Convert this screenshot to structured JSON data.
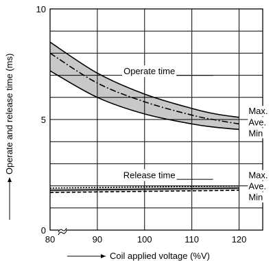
{
  "chart_data": {
    "type": "line",
    "xlabel": "Coil applied voltage (%V)",
    "ylabel": "Operate and release time (ms)",
    "xlim": [
      80,
      125
    ],
    "ylim": [
      0,
      10
    ],
    "x_ticks": [
      {
        "value": 80,
        "label": "80"
      },
      {
        "value": 90,
        "label": "90"
      },
      {
        "value": 100,
        "label": "100"
      },
      {
        "value": 110,
        "label": "110"
      },
      {
        "value": 120,
        "label": "120"
      }
    ],
    "y_ticks": [
      {
        "value": 0,
        "label": "0"
      },
      {
        "value": 5,
        "label": "5"
      },
      {
        "value": 10,
        "label": "10"
      }
    ],
    "grid": true,
    "axis_break": "≈",
    "groups": [
      {
        "label": "Operate time",
        "label_at": {
          "x": 101,
          "y": 7.15
        },
        "shaded_band": true,
        "series": [
          {
            "name": "Max.",
            "style": "solid",
            "x": [
              80,
              90,
              100,
              110,
              115,
              120
            ],
            "y": [
              8.5,
              7.1,
              6.15,
              5.5,
              5.25,
              5.1
            ]
          },
          {
            "name": "Ave.",
            "style": "dashdot",
            "x": [
              80,
              90,
              100,
              110,
              115,
              120
            ],
            "y": [
              8.0,
              6.65,
              5.8,
              5.2,
              4.98,
              4.8
            ]
          },
          {
            "name": "Min",
            "style": "solid",
            "x": [
              80,
              90,
              100,
              110,
              115,
              120
            ],
            "y": [
              7.2,
              6.0,
              5.25,
              4.8,
              4.65,
              4.55
            ]
          }
        ]
      },
      {
        "label": "Release time",
        "label_at": {
          "x": 101,
          "y": 2.45
        },
        "shaded_band": true,
        "series": [
          {
            "name": "Max.",
            "style": "dotted",
            "x": [
              80,
              100,
              120
            ],
            "y": [
              1.9,
              1.95,
              2.0
            ]
          },
          {
            "name": "Ave.",
            "style": "solid",
            "x": [
              80,
              100,
              120
            ],
            "y": [
              1.8,
              1.85,
              1.9
            ]
          },
          {
            "name": "Min",
            "style": "dashed",
            "x": [
              80,
              100,
              120
            ],
            "y": [
              1.7,
              1.75,
              1.8
            ]
          }
        ]
      }
    ],
    "legend_labels": [
      {
        "text": "Max.",
        "y": 5.35
      },
      {
        "text": "Ave.",
        "y": 4.85
      },
      {
        "text": "Min",
        "y": 4.35
      },
      {
        "text": "Max.",
        "y": 2.45
      },
      {
        "text": "Ave.",
        "y": 1.95
      },
      {
        "text": "Min",
        "y": 1.45
      }
    ],
    "colors": {
      "band": "#c8c8c8",
      "line": "#000000",
      "grid": "#000000"
    }
  }
}
